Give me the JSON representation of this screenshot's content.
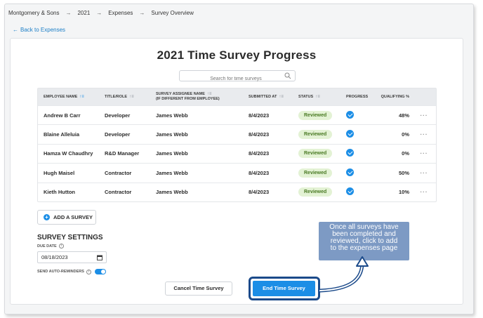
{
  "breadcrumb": [
    "Montgomery & Sons",
    "2021",
    "Expenses",
    "Survey Overview"
  ],
  "back_link": "Back to Expenses",
  "title": "2021 Time Survey Progress",
  "search": {
    "placeholder": "Search for time surveys"
  },
  "table": {
    "headers": {
      "employee": "EMPLOYEE NAME",
      "title_role": "TITLE/ROLE",
      "assignee_line1": "SURVEY ASSIGNEE NAME",
      "assignee_line2": "(IF DIFFERENT FROM EMPLOYEE)",
      "submitted": "SUBMITTED AT",
      "status": "STATUS",
      "progress": "PROGRESS",
      "qualifying": "QUALIFYING %"
    },
    "rows": [
      {
        "employee": "Andrew B Carr",
        "role": "Developer",
        "assignee": "James Webb",
        "submitted": "8/4/2023",
        "status": "Reviewed",
        "qualifying": "48%"
      },
      {
        "employee": "Blaine Alleluia",
        "role": "Developer",
        "assignee": "James Webb",
        "submitted": "8/4/2023",
        "status": "Reviewed",
        "qualifying": "0%"
      },
      {
        "employee": "Hamza W Chaudhry",
        "role": "R&D Manager",
        "assignee": "James Webb",
        "submitted": "8/4/2023",
        "status": "Reviewed",
        "qualifying": "0%"
      },
      {
        "employee": "Hugh Maisel",
        "role": "Contractor",
        "assignee": "James Webb",
        "submitted": "8/4/2023",
        "status": "Reviewed",
        "qualifying": "50%"
      },
      {
        "employee": "Kieth Hutton",
        "role": "Contractor",
        "assignee": "James Webb",
        "submitted": "8/4/2023",
        "status": "Reviewed",
        "qualifying": "10%"
      }
    ],
    "row_menu": "···"
  },
  "add_survey": "ADD A SURVEY",
  "settings": {
    "title": "SURVEY SETTINGS",
    "due_date_label": "DUE DATE",
    "due_date_value": "08/18/2023",
    "reminders_label": "SEND AUTO-REMINDERS",
    "reminders_on": true
  },
  "actions": {
    "cancel": "Cancel Time Survey",
    "end": "End Time Survey"
  },
  "callout": {
    "line1": "Once all surveys have",
    "line2": "been completed and",
    "line3": "reviewed, click to add",
    "line4": "to the expenses page"
  },
  "colors": {
    "accent": "#1c8ee6",
    "callout_bg": "#7d9ac4",
    "highlight_outline": "#1b4a8a",
    "reviewed_badge_bg": "#e3f2d4",
    "reviewed_badge_text": "#4a7a24"
  }
}
